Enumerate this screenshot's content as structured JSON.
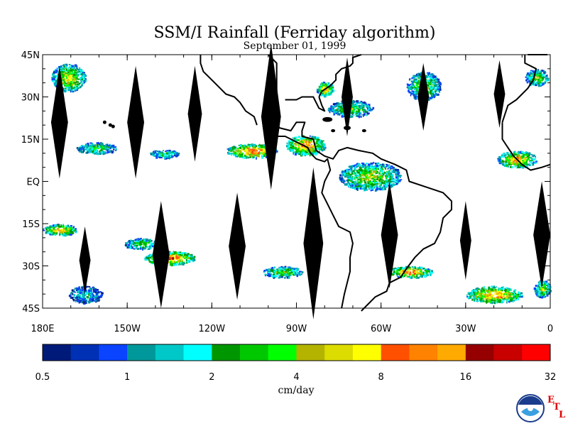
{
  "chart_data": {
    "type": "heatmap",
    "title": "SSM/I Rainfall (Ferriday algorithm)",
    "subtitle": "September 01, 1999",
    "x_ticks": [
      "180E",
      "150W",
      "120W",
      "90W",
      "60W",
      "30W",
      "0"
    ],
    "y_ticks": [
      "45N",
      "30N",
      "15N",
      "EQ",
      "15S",
      "30S",
      "45S"
    ],
    "xlim": [
      -180,
      0
    ],
    "ylim": [
      -45,
      45
    ],
    "colorbar": {
      "unit": "cm/day",
      "labels": [
        "0.5",
        "1",
        "2",
        "4",
        "8",
        "16",
        "32"
      ],
      "colors": [
        "#001a7a",
        "#0030b4",
        "#0a44ff",
        "#00989a",
        "#00c8c8",
        "#00ffff",
        "#009600",
        "#00c800",
        "#00ff00",
        "#b4b400",
        "#dcdc00",
        "#ffff00",
        "#ff5000",
        "#ff8200",
        "#ffaa00",
        "#960000",
        "#c80000",
        "#ff0000"
      ]
    },
    "rain_regions": [
      {
        "lon": -171,
        "lat": 37,
        "w": 12,
        "h": 10,
        "level": 11
      },
      {
        "lon": -161,
        "lat": 12,
        "w": 14,
        "h": 4,
        "level": 8
      },
      {
        "lon": -137,
        "lat": 10,
        "w": 10,
        "h": 3,
        "level": 7
      },
      {
        "lon": -106,
        "lat": 11,
        "w": 18,
        "h": 5,
        "level": 15
      },
      {
        "lon": -87,
        "lat": 13,
        "w": 14,
        "h": 7,
        "level": 14
      },
      {
        "lon": -80,
        "lat": 33,
        "w": 6,
        "h": 5,
        "level": 13
      },
      {
        "lon": -71,
        "lat": 26,
        "w": 16,
        "h": 6,
        "level": 8
      },
      {
        "lon": -45,
        "lat": 34,
        "w": 12,
        "h": 10,
        "level": 9
      },
      {
        "lon": -64,
        "lat": 2,
        "w": 22,
        "h": 10,
        "level": 10
      },
      {
        "lon": -12,
        "lat": 8,
        "w": 14,
        "h": 6,
        "level": 13
      },
      {
        "lon": -5,
        "lat": 37,
        "w": 8,
        "h": 6,
        "level": 9
      },
      {
        "lon": -174,
        "lat": -17,
        "w": 12,
        "h": 4,
        "level": 13
      },
      {
        "lon": -135,
        "lat": -27,
        "w": 18,
        "h": 5,
        "level": 15
      },
      {
        "lon": -145,
        "lat": -22,
        "w": 12,
        "h": 4,
        "level": 8
      },
      {
        "lon": -95,
        "lat": -32,
        "w": 14,
        "h": 4,
        "level": 9
      },
      {
        "lon": -50,
        "lat": -32,
        "w": 16,
        "h": 4,
        "level": 14
      },
      {
        "lon": -20,
        "lat": -40,
        "w": 20,
        "h": 6,
        "level": 14
      },
      {
        "lon": -165,
        "lat": -40,
        "w": 12,
        "h": 6,
        "level": 5
      },
      {
        "lon": -3,
        "lat": -38,
        "w": 6,
        "h": 6,
        "level": 10
      }
    ]
  }
}
